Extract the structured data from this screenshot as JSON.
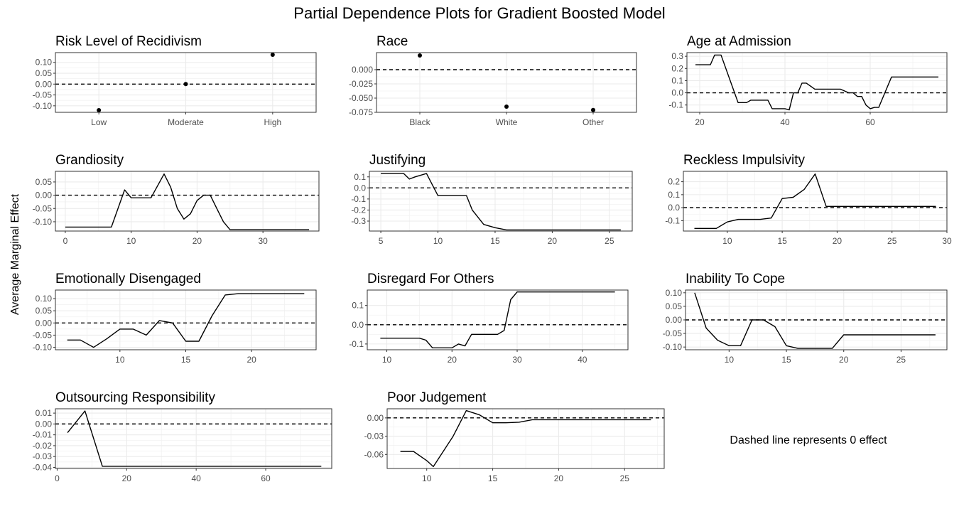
{
  "figure": {
    "title": "Partial Dependence Plots for Gradient Boosted Model",
    "ylabel": "Average Marginal Effect",
    "note": "Dashed line represents 0 effect"
  },
  "chart_data": [
    {
      "type": "scatter",
      "title": "Risk Level of Recidivism",
      "x_categorical": true,
      "categories": [
        "Low",
        "Moderate",
        "High"
      ],
      "values": [
        -0.12,
        0.0,
        0.135
      ],
      "ylim": [
        -0.13,
        0.145
      ],
      "yticks": [
        -0.1,
        -0.05,
        0.0,
        0.05,
        0.1
      ],
      "ytick_labels": [
        "-0.10",
        "-0.05",
        "0.00",
        "0.05",
        "0.10"
      ],
      "reference_line": 0,
      "grid": true
    },
    {
      "type": "scatter",
      "title": "Race",
      "x_categorical": true,
      "categories": [
        "Black",
        "White",
        "Other"
      ],
      "values": [
        0.025,
        -0.065,
        -0.071
      ],
      "ylim": [
        -0.075,
        0.03
      ],
      "yticks": [
        -0.075,
        -0.05,
        -0.025,
        0.0
      ],
      "ytick_labels": [
        "-0.075",
        "-0.050",
        "-0.025",
        "0.000"
      ],
      "reference_line": 0,
      "grid": true
    },
    {
      "type": "line",
      "title": "Age at Admission",
      "x": [
        19,
        22.5,
        23.5,
        25,
        29,
        31,
        32,
        36,
        37,
        39,
        40,
        41,
        42,
        43,
        44,
        45,
        47,
        48,
        53,
        55,
        56,
        57,
        58,
        59,
        60,
        61,
        62,
        65,
        66,
        70,
        76
      ],
      "y": [
        0.23,
        0.23,
        0.31,
        0.31,
        -0.08,
        -0.08,
        -0.06,
        -0.06,
        -0.13,
        -0.13,
        -0.13,
        -0.14,
        0.0,
        0.0,
        0.08,
        0.08,
        0.03,
        0.03,
        0.03,
        0.0,
        0.0,
        -0.03,
        -0.03,
        -0.1,
        -0.13,
        -0.12,
        -0.12,
        0.13,
        0.13,
        0.13,
        0.13
      ],
      "xlim": [
        17,
        78
      ],
      "ylim": [
        -0.16,
        0.33
      ],
      "xticks": [
        20,
        40,
        60
      ],
      "yticks": [
        -0.1,
        0.0,
        0.1,
        0.2,
        0.3
      ],
      "ytick_labels": [
        "-0.1",
        "0.0",
        "0.1",
        "0.2",
        "0.3"
      ],
      "reference_line": 0,
      "grid": true
    },
    {
      "type": "line",
      "title": "Grandiosity",
      "x": [
        0,
        5,
        7,
        9,
        10,
        11,
        13,
        15,
        16,
        17,
        18,
        19,
        20,
        21,
        22,
        23,
        24,
        25,
        37
      ],
      "y": [
        -0.12,
        -0.12,
        -0.12,
        0.02,
        -0.01,
        -0.01,
        -0.01,
        0.08,
        0.03,
        -0.05,
        -0.09,
        -0.07,
        -0.02,
        0.0,
        0.0,
        -0.05,
        -0.1,
        -0.13,
        -0.13
      ],
      "xlim": [
        -1.5,
        38.5
      ],
      "ylim": [
        -0.135,
        0.09
      ],
      "xticks": [
        0,
        10,
        20,
        30
      ],
      "yticks": [
        -0.1,
        -0.05,
        0.0,
        0.05
      ],
      "ytick_labels": [
        "-0.10",
        "-0.05",
        "0.00",
        "0.05"
      ],
      "reference_line": 0,
      "grid": true
    },
    {
      "type": "line",
      "title": "Justifying",
      "x": [
        5,
        6,
        7,
        7.5,
        8,
        9,
        10,
        11,
        12,
        12.5,
        13,
        14,
        15,
        16,
        20,
        26
      ],
      "y": [
        0.13,
        0.13,
        0.13,
        0.08,
        0.1,
        0.13,
        -0.07,
        -0.07,
        -0.07,
        -0.07,
        -0.2,
        -0.33,
        -0.36,
        -0.38,
        -0.38,
        -0.38
      ],
      "xlim": [
        4,
        27
      ],
      "ylim": [
        -0.39,
        0.15
      ],
      "xticks": [
        5,
        10,
        15,
        20,
        25
      ],
      "yticks": [
        -0.3,
        -0.2,
        -0.1,
        0.0,
        0.1
      ],
      "ytick_labels": [
        "-0.3",
        "-0.2",
        "-0.1",
        "0.0",
        "0.1"
      ],
      "reference_line": 0,
      "grid": true
    },
    {
      "type": "line",
      "title": "Reckless Impulsivity",
      "x": [
        7,
        9,
        10,
        11,
        12,
        13,
        14,
        15,
        16,
        17,
        18,
        19,
        20,
        25,
        29
      ],
      "y": [
        -0.16,
        -0.16,
        -0.11,
        -0.09,
        -0.09,
        -0.09,
        -0.08,
        0.07,
        0.08,
        0.14,
        0.26,
        0.01,
        0.01,
        0.01,
        0.01
      ],
      "xlim": [
        6,
        30
      ],
      "ylim": [
        -0.18,
        0.28
      ],
      "xticks": [
        10,
        15,
        20,
        25,
        30
      ],
      "yticks": [
        -0.1,
        0.0,
        0.1,
        0.2
      ],
      "ytick_labels": [
        "-0.1",
        "0.0",
        "0.1",
        "0.2"
      ],
      "reference_line": 0,
      "grid": true
    },
    {
      "type": "line",
      "title": "Emotionally Disengaged",
      "x": [
        6,
        7,
        8,
        9,
        10,
        11,
        12,
        13,
        14,
        15,
        16,
        17,
        18,
        19,
        24
      ],
      "y": [
        -0.07,
        -0.07,
        -0.1,
        -0.065,
        -0.025,
        -0.025,
        -0.05,
        0.01,
        0.0,
        -0.075,
        -0.075,
        0.03,
        0.115,
        0.12,
        0.12
      ],
      "xlim": [
        5.1,
        24.9
      ],
      "ylim": [
        -0.11,
        0.135
      ],
      "xticks": [
        10,
        15,
        20
      ],
      "yticks": [
        -0.1,
        -0.05,
        0.0,
        0.05,
        0.1
      ],
      "ytick_labels": [
        "-0.10",
        "-0.05",
        "0.00",
        "0.05",
        "0.10"
      ],
      "reference_line": 0,
      "grid": true
    },
    {
      "type": "line",
      "title": "Disregard For Others",
      "x": [
        9,
        11,
        15,
        16,
        17,
        20,
        21,
        22,
        23,
        27,
        28,
        29,
        30,
        31,
        45
      ],
      "y": [
        -0.07,
        -0.07,
        -0.07,
        -0.08,
        -0.12,
        -0.12,
        -0.1,
        -0.11,
        -0.05,
        -0.05,
        -0.03,
        0.13,
        0.17,
        0.17,
        0.17
      ],
      "xlim": [
        7,
        47
      ],
      "ylim": [
        -0.13,
        0.18
      ],
      "xticks": [
        10,
        20,
        30,
        40
      ],
      "yticks": [
        -0.1,
        0.0,
        0.1
      ],
      "ytick_labels": [
        "-0.1",
        "0.0",
        "0.1"
      ],
      "reference_line": 0,
      "grid": true
    },
    {
      "type": "line",
      "title": "Inability To Cope",
      "x": [
        7,
        8,
        9,
        10,
        11,
        12,
        13,
        14,
        15,
        16,
        17,
        18,
        19,
        20,
        28
      ],
      "y": [
        0.1,
        -0.03,
        -0.075,
        -0.095,
        -0.095,
        0.0,
        0.0,
        -0.025,
        -0.095,
        -0.105,
        -0.105,
        -0.105,
        -0.105,
        -0.055,
        -0.055
      ],
      "xlim": [
        6.2,
        29
      ],
      "ylim": [
        -0.11,
        0.11
      ],
      "xticks": [
        10,
        15,
        20,
        25
      ],
      "yticks": [
        -0.1,
        -0.05,
        0.0,
        0.05,
        0.1
      ],
      "ytick_labels": [
        "-0.10",
        "-0.05",
        "0.00",
        "0.05",
        "0.10"
      ],
      "reference_line": 0,
      "grid": true
    },
    {
      "type": "line",
      "title": "Outsourcing Responsibility",
      "x": [
        3,
        8,
        13,
        76
      ],
      "y": [
        -0.008,
        0.012,
        -0.039,
        -0.039
      ],
      "xlim": [
        -0.5,
        79
      ],
      "ylim": [
        -0.041,
        0.014
      ],
      "xticks": [
        0,
        20,
        40,
        60
      ],
      "yticks": [
        -0.04,
        -0.03,
        -0.02,
        -0.01,
        0.0,
        0.01
      ],
      "ytick_labels": [
        "-0.04",
        "-0.03",
        "-0.02",
        "-0.01",
        "0.00",
        "0.01"
      ],
      "reference_line": 0,
      "grid": true
    },
    {
      "type": "line",
      "title": "Poor Judgement",
      "x": [
        8,
        9,
        10,
        10.5,
        12,
        13,
        14,
        15,
        16,
        17,
        18,
        27
      ],
      "y": [
        -0.055,
        -0.055,
        -0.07,
        -0.08,
        -0.03,
        0.012,
        0.005,
        -0.008,
        -0.008,
        -0.007,
        -0.003,
        -0.003
      ],
      "xlim": [
        7,
        28
      ],
      "ylim": [
        -0.083,
        0.015
      ],
      "xticks": [
        10,
        15,
        20,
        25
      ],
      "yticks": [
        -0.06,
        -0.03,
        0.0
      ],
      "ytick_labels": [
        "-0.06",
        "-0.03",
        "0.00"
      ],
      "reference_line": 0,
      "grid": true
    }
  ]
}
